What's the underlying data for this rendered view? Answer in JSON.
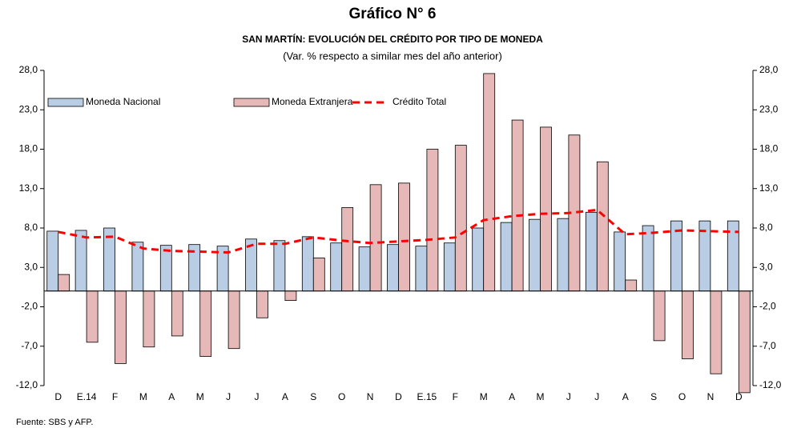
{
  "chart_data": {
    "type": "bar",
    "title": "Gráfico N° 6",
    "subtitle": "SAN MARTÍN: EVOLUCIÓN DEL CRÉDITO POR TIPO DE MONEDA",
    "note": "(Var. % respecto a similar mes del año anterior)",
    "source": "Fuente: SBS y AFP.",
    "categories": [
      "D",
      "E.14",
      "F",
      "M",
      "A",
      "M",
      "J",
      "J",
      "A",
      "S",
      "O",
      "N",
      "D",
      "E.15",
      "F",
      "M",
      "A",
      "M",
      "J",
      "J",
      "A",
      "S",
      "O",
      "N",
      "D"
    ],
    "series": [
      {
        "name": "Moneda Nacional",
        "type": "bar",
        "color": "#b9cde5",
        "values": [
          7.6,
          7.7,
          8.0,
          6.2,
          5.8,
          5.9,
          5.7,
          6.6,
          6.4,
          6.9,
          6.1,
          5.6,
          5.9,
          5.7,
          6.1,
          8.0,
          8.7,
          9.1,
          9.2,
          10.0,
          7.5,
          8.3,
          8.9,
          8.9,
          8.9
        ]
      },
      {
        "name": "Moneda Extranjera",
        "type": "bar",
        "color": "#e6b9b8",
        "values": [
          2.1,
          -6.5,
          -9.2,
          -7.1,
          -5.7,
          -8.3,
          -7.3,
          -3.4,
          -1.2,
          4.2,
          10.6,
          13.5,
          13.7,
          18.0,
          18.5,
          27.6,
          21.7,
          20.8,
          19.8,
          16.4,
          1.4,
          -6.3,
          -8.6,
          -10.5,
          -12.9
        ]
      },
      {
        "name": "Crédito Total",
        "type": "line",
        "color": "#ff0000",
        "dashed": true,
        "values": [
          7.5,
          6.8,
          6.9,
          5.4,
          5.1,
          5.0,
          4.9,
          6.0,
          6.0,
          6.8,
          6.4,
          6.1,
          6.3,
          6.5,
          6.8,
          9.0,
          9.5,
          9.8,
          9.9,
          10.3,
          7.2,
          7.4,
          7.7,
          7.6,
          7.5
        ]
      }
    ],
    "ylim": [
      -12,
      28
    ],
    "yticks": [
      {
        "value": -12,
        "label": "-12,0"
      },
      {
        "value": -7,
        "label": "-7,0"
      },
      {
        "value": -2,
        "label": "-2,0"
      },
      {
        "value": 3,
        "label": "3,0"
      },
      {
        "value": 8,
        "label": "8,0"
      },
      {
        "value": 13,
        "label": "13,0"
      },
      {
        "value": 18,
        "label": "18,0"
      },
      {
        "value": 23,
        "label": "23,0"
      },
      {
        "value": 28,
        "label": "28,0"
      }
    ],
    "y2lim": [
      -12,
      28
    ],
    "y2ticks": [
      {
        "value": -12,
        "label": "-12,0"
      },
      {
        "value": -7,
        "label": "-7,0"
      },
      {
        "value": -2,
        "label": "-2,0"
      },
      {
        "value": 3,
        "label": "3,0"
      },
      {
        "value": 8,
        "label": "8,0"
      },
      {
        "value": 13,
        "label": "13,0"
      },
      {
        "value": 18,
        "label": "18,0"
      },
      {
        "value": 23,
        "label": "23,0"
      },
      {
        "value": 28,
        "label": "28,0"
      }
    ],
    "grid": false,
    "legend": "top-left"
  }
}
